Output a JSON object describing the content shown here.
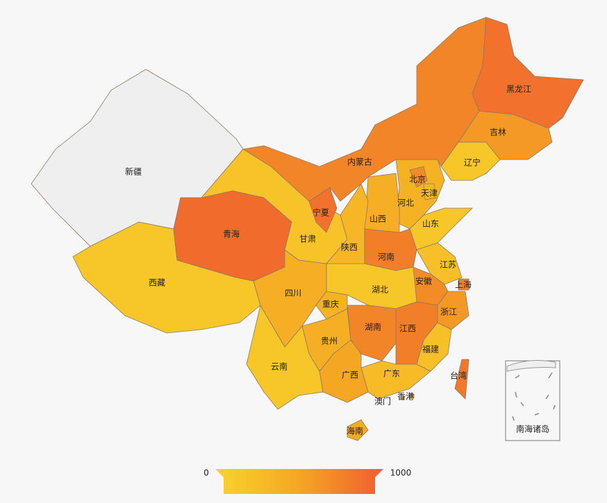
{
  "chart_data": {
    "type": "map",
    "regions": [
      {
        "name": "新疆",
        "value": null
      },
      {
        "name": "西藏",
        "value": 100
      },
      {
        "name": "青海",
        "value": 950
      },
      {
        "name": "甘肃",
        "value": 150
      },
      {
        "name": "宁夏",
        "value": 900
      },
      {
        "name": "内蒙古",
        "value": 750
      },
      {
        "name": "黑龙江",
        "value": 900
      },
      {
        "name": "吉林",
        "value": 600
      },
      {
        "name": "辽宁",
        "value": 100
      },
      {
        "name": "河北",
        "value": 350
      },
      {
        "name": "北京",
        "value": 700
      },
      {
        "name": "天津",
        "value": 300
      },
      {
        "name": "山西",
        "value": 400
      },
      {
        "name": "山东",
        "value": 100
      },
      {
        "name": "陕西",
        "value": 300
      },
      {
        "name": "河南",
        "value": 800
      },
      {
        "name": "江苏",
        "value": 200
      },
      {
        "name": "安徽",
        "value": 700
      },
      {
        "name": "上海",
        "value": 800
      },
      {
        "name": "浙江",
        "value": 600
      },
      {
        "name": "湖北",
        "value": 100
      },
      {
        "name": "湖南",
        "value": 750
      },
      {
        "name": "江西",
        "value": 800
      },
      {
        "name": "福建",
        "value": 200
      },
      {
        "name": "台湾",
        "value": 850
      },
      {
        "name": "广东",
        "value": 250
      },
      {
        "name": "广西",
        "value": 500
      },
      {
        "name": "贵州",
        "value": 400
      },
      {
        "name": "云南",
        "value": 100
      },
      {
        "name": "四川",
        "value": 400
      },
      {
        "name": "重庆",
        "value": 350
      },
      {
        "name": "海南",
        "value": 450
      },
      {
        "name": "香港",
        "value": 300
      },
      {
        "name": "澳门",
        "value": 300
      }
    ],
    "inset_label": "南海诸岛",
    "no_data_color": "#efefef",
    "visual_map": {
      "min": 0,
      "max": 1000,
      "colors": [
        "#f8cf2b",
        "#f5a623",
        "#f1642e"
      ]
    }
  }
}
